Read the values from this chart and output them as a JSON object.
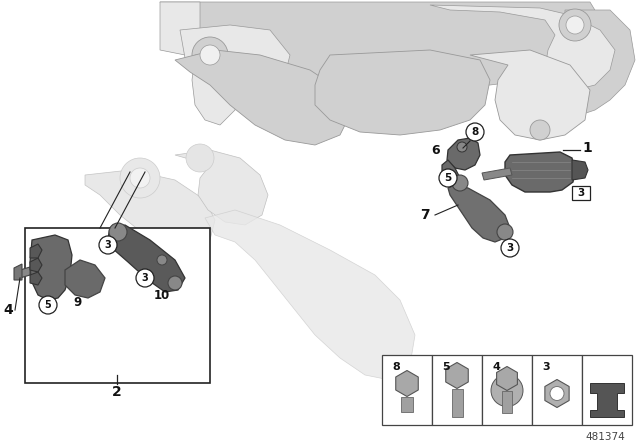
{
  "bg_color": "#ffffff",
  "part_number": "481374",
  "frame_light": "#e8e8e8",
  "frame_mid": "#d0d0d0",
  "frame_dark": "#b8b8b8",
  "frame_edge": "#999999",
  "part_dark": "#5a5a5a",
  "part_mid": "#787878",
  "label_color": "#111111",
  "line_color": "#222222",
  "box_color": "#444444"
}
